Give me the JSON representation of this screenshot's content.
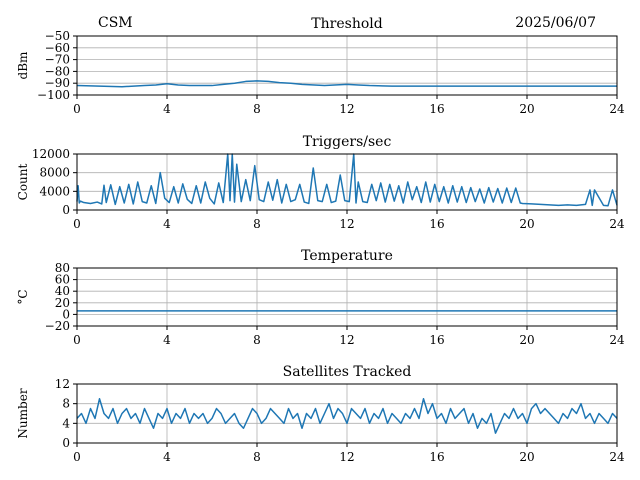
{
  "header": {
    "left": "CSM",
    "right": "2025/06/07"
  },
  "colors": {
    "series": "#1f77b4",
    "grid": "#b0b0b0"
  },
  "chart_data": [
    {
      "type": "line",
      "title": "Threshold",
      "ylabel": "dBm",
      "xlim": [
        0,
        24
      ],
      "ylim": [
        -100,
        -50
      ],
      "xticks": [
        0,
        4,
        8,
        12,
        16,
        20,
        24
      ],
      "yticks": [
        -100,
        -90,
        -80,
        -70,
        -60,
        -50
      ],
      "grid": true,
      "series": [
        {
          "x": [
            0,
            1,
            2,
            3,
            3.5,
            4,
            4.5,
            5,
            6,
            6.5,
            7,
            7.5,
            8,
            8.5,
            9,
            9.5,
            10,
            11,
            12,
            12.5,
            13,
            14,
            16,
            18,
            20,
            22,
            24
          ],
          "values": [
            -92,
            -92.5,
            -93,
            -92,
            -91.5,
            -90.5,
            -91.5,
            -92,
            -92,
            -91,
            -90,
            -88.5,
            -88,
            -88.5,
            -89.5,
            -90,
            -91,
            -92,
            -91,
            -91.5,
            -92,
            -92.5,
            -92.5,
            -92.5,
            -92.5,
            -92.5,
            -92.5
          ]
        }
      ]
    },
    {
      "type": "line",
      "title": "Triggers/sec",
      "ylabel": "Count",
      "xlim": [
        0,
        24
      ],
      "ylim": [
        0,
        12000
      ],
      "xticks": [
        0,
        4,
        8,
        12,
        16,
        20,
        24
      ],
      "yticks": [
        0,
        4000,
        8000,
        12000
      ],
      "grid": true,
      "series": [
        {
          "x": [
            0,
            0.05,
            0.1,
            0.15,
            0.3,
            0.6,
            0.9,
            1.1,
            1.2,
            1.3,
            1.5,
            1.7,
            1.9,
            2.1,
            2.3,
            2.5,
            2.7,
            2.9,
            3.1,
            3.3,
            3.5,
            3.7,
            3.9,
            4.1,
            4.3,
            4.5,
            4.7,
            4.9,
            5.1,
            5.3,
            5.5,
            5.7,
            5.9,
            6.1,
            6.3,
            6.5,
            6.7,
            6.8,
            6.9,
            7.0,
            7.1,
            7.3,
            7.5,
            7.7,
            7.9,
            8.1,
            8.3,
            8.5,
            8.7,
            8.9,
            9.1,
            9.3,
            9.5,
            9.7,
            9.9,
            10.1,
            10.3,
            10.5,
            10.7,
            10.9,
            11.1,
            11.3,
            11.5,
            11.7,
            11.9,
            12.1,
            12.3,
            12.4,
            12.5,
            12.7,
            12.9,
            13.1,
            13.3,
            13.5,
            13.7,
            13.9,
            14.1,
            14.3,
            14.5,
            14.7,
            14.9,
            15.1,
            15.3,
            15.5,
            15.7,
            15.9,
            16.1,
            16.3,
            16.5,
            16.7,
            16.9,
            17.1,
            17.3,
            17.5,
            17.7,
            17.9,
            18.1,
            18.3,
            18.5,
            18.7,
            18.9,
            19.1,
            19.3,
            19.5,
            19.7,
            19.8,
            20.2,
            20.6,
            21.0,
            21.4,
            21.8,
            22.2,
            22.6,
            22.8,
            22.9,
            23.0,
            23.4,
            23.6,
            23.8,
            24
          ],
          "values": [
            1800,
            5200,
            1500,
            1900,
            1600,
            1400,
            1700,
            1300,
            5300,
            1600,
            5400,
            1200,
            5000,
            1500,
            5500,
            1300,
            6000,
            1800,
            1500,
            5200,
            1400,
            8000,
            2500,
            1600,
            5000,
            1500,
            5600,
            2300,
            1400,
            5200,
            1500,
            6000,
            2500,
            1300,
            5800,
            1600,
            12000,
            2000,
            12000,
            1700,
            9800,
            1800,
            6500,
            2000,
            9500,
            2200,
            1800,
            6000,
            2100,
            6500,
            1500,
            5500,
            1800,
            2200,
            5500,
            1700,
            1400,
            9000,
            2000,
            1800,
            5500,
            1600,
            1900,
            7500,
            2000,
            1800,
            12000,
            1500,
            6000,
            1800,
            1600,
            5500,
            2000,
            5800,
            1700,
            5500,
            1900,
            5200,
            1500,
            6000,
            2200,
            5000,
            1600,
            6000,
            1700,
            5500,
            1800,
            5000,
            1500,
            5200,
            1700,
            5000,
            1600,
            4800,
            1800,
            4500,
            1500,
            4800,
            1700,
            4600,
            1500,
            4700,
            1600,
            4700,
            1500,
            1400,
            1300,
            1200,
            1100,
            1000,
            1100,
            1000,
            1200,
            4300,
            1000,
            4300,
            1000,
            900,
            4300,
            1000
          ]
        }
      ]
    },
    {
      "type": "line",
      "title": "Temperature",
      "ylabel": "°C",
      "xlim": [
        0,
        24
      ],
      "ylim": [
        -20,
        80
      ],
      "xticks": [
        0,
        4,
        8,
        12,
        16,
        20,
        24
      ],
      "yticks": [
        -20,
        0,
        20,
        40,
        60,
        80
      ],
      "grid": true,
      "series": [
        {
          "x": [
            0,
            24
          ],
          "values": [
            6,
            6
          ]
        }
      ]
    },
    {
      "type": "line",
      "title": "Satellites Tracked",
      "ylabel": "Number",
      "xlim": [
        0,
        24
      ],
      "ylim": [
        0,
        12
      ],
      "xticks": [
        0,
        4,
        8,
        12,
        16,
        20,
        24
      ],
      "yticks": [
        0,
        4,
        8,
        12
      ],
      "grid": true,
      "series": [
        {
          "x": [
            0,
            0.2,
            0.4,
            0.6,
            0.8,
            1.0,
            1.2,
            1.4,
            1.6,
            1.8,
            2.0,
            2.2,
            2.4,
            2.6,
            2.8,
            3.0,
            3.2,
            3.4,
            3.6,
            3.8,
            4.0,
            4.2,
            4.4,
            4.6,
            4.8,
            5.0,
            5.2,
            5.4,
            5.6,
            5.8,
            6.0,
            6.2,
            6.4,
            6.6,
            6.8,
            7.0,
            7.2,
            7.4,
            7.6,
            7.8,
            8.0,
            8.2,
            8.4,
            8.6,
            8.8,
            9.0,
            9.2,
            9.4,
            9.6,
            9.8,
            10.0,
            10.2,
            10.4,
            10.6,
            10.8,
            11.0,
            11.2,
            11.4,
            11.6,
            11.8,
            12.0,
            12.2,
            12.4,
            12.6,
            12.8,
            13.0,
            13.2,
            13.4,
            13.6,
            13.8,
            14.0,
            14.2,
            14.4,
            14.6,
            14.8,
            15.0,
            15.2,
            15.4,
            15.6,
            15.8,
            16.0,
            16.2,
            16.4,
            16.6,
            16.8,
            17.0,
            17.2,
            17.4,
            17.6,
            17.8,
            18.0,
            18.2,
            18.4,
            18.6,
            18.8,
            19.0,
            19.2,
            19.4,
            19.6,
            19.8,
            20.0,
            20.2,
            20.4,
            20.6,
            20.8,
            21.0,
            21.2,
            21.4,
            21.6,
            21.8,
            22.0,
            22.2,
            22.4,
            22.6,
            22.8,
            23.0,
            23.2,
            23.4,
            23.6,
            23.8,
            24
          ],
          "values": [
            5,
            6,
            4,
            7,
            5,
            9,
            6,
            5,
            7,
            4,
            6,
            7,
            5,
            6,
            4,
            7,
            5,
            3,
            6,
            5,
            7,
            4,
            6,
            5,
            7,
            4,
            6,
            5,
            6,
            4,
            5,
            7,
            6,
            4,
            5,
            6,
            4,
            3,
            5,
            7,
            6,
            4,
            5,
            7,
            6,
            5,
            4,
            7,
            5,
            6,
            3,
            6,
            5,
            7,
            4,
            6,
            8,
            5,
            7,
            6,
            4,
            7,
            6,
            5,
            7,
            4,
            6,
            5,
            7,
            4,
            6,
            5,
            4,
            6,
            5,
            7,
            5,
            9,
            6,
            8,
            5,
            6,
            4,
            7,
            5,
            6,
            7,
            4,
            6,
            3,
            5,
            4,
            6,
            2,
            4,
            6,
            5,
            7,
            5,
            6,
            4,
            7,
            8,
            6,
            7,
            6,
            5,
            4,
            6,
            5,
            7,
            6,
            8,
            5,
            6,
            4,
            6,
            5,
            4,
            6,
            5
          ]
        }
      ]
    }
  ]
}
